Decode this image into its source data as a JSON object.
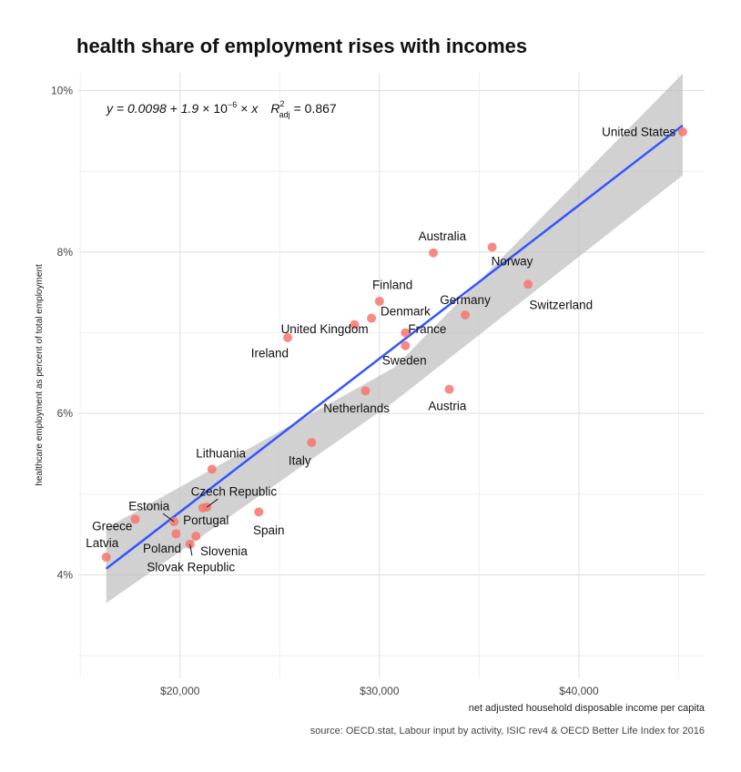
{
  "chart_data": {
    "type": "scatter",
    "title": "health share of employment rises with incomes",
    "xlabel": "net adjusted household disposable income per capita",
    "ylabel": "healthcare employment as percent of total employment",
    "caption": "source: OECD.stat, Labour input by activity, ISIC rev4 & OECD Better Life Index for 2016",
    "xlim": [
      14900,
      46300
    ],
    "ylim": [
      0.0272,
      0.1022
    ],
    "x_ticks": [
      20000,
      30000,
      40000
    ],
    "x_tick_labels": [
      "$20,000",
      "$30,000",
      "$40,000"
    ],
    "y_ticks": [
      0.04,
      0.06,
      0.08,
      0.1
    ],
    "y_tick_labels": [
      "4%",
      "6%",
      "8%",
      "10%"
    ],
    "grid": true,
    "equation": {
      "lhs": "y = 0.0098 + 1.9",
      "times1": "×",
      "base": "10",
      "exp": "−6",
      "times2": "×",
      "x": "x",
      "r": "R",
      "r_sup": "2",
      "r_sub": "adj",
      "r_val": "= 0.867"
    },
    "fit": {
      "intercept": 0.0098,
      "slope": 1.9e-06,
      "x_range": [
        16300,
        45200
      ],
      "band_start": [
        0.0365,
        0.0458
      ],
      "band_mid": [
        0.0615,
        0.0657
      ],
      "band_end": [
        0.0895,
        0.1021
      ]
    },
    "colors": {
      "point": "#f8766d",
      "line": "#3355ff",
      "band": "#bfbfbf"
    },
    "points": [
      {
        "country": "United States",
        "x": 45200,
        "y": 0.0949
      },
      {
        "country": "Australia",
        "x": 32700,
        "y": 0.0799
      },
      {
        "country": "Norway",
        "x": 35650,
        "y": 0.0806
      },
      {
        "country": "Switzerland",
        "x": 37450,
        "y": 0.076
      },
      {
        "country": "Finland",
        "x": 30000,
        "y": 0.0739
      },
      {
        "country": "Denmark",
        "x": 29600,
        "y": 0.0718
      },
      {
        "country": "Germany",
        "x": 34300,
        "y": 0.0722
      },
      {
        "country": "United Kingdom",
        "x": 28750,
        "y": 0.071
      },
      {
        "country": "France",
        "x": 31300,
        "y": 0.07
      },
      {
        "country": "Ireland",
        "x": 25400,
        "y": 0.0694
      },
      {
        "country": "Sweden",
        "x": 31300,
        "y": 0.0684
      },
      {
        "country": "Austria",
        "x": 33500,
        "y": 0.063
      },
      {
        "country": "Netherlands",
        "x": 29300,
        "y": 0.0628
      },
      {
        "country": "Italy",
        "x": 26600,
        "y": 0.0564
      },
      {
        "country": "Lithuania",
        "x": 21600,
        "y": 0.0531
      },
      {
        "country": "Czech Republic",
        "x": 21350,
        "y": 0.0484
      },
      {
        "country": "Estonia",
        "x": 19700,
        "y": 0.0466
      },
      {
        "country": "Spain",
        "x": 23950,
        "y": 0.0478
      },
      {
        "country": "Greece",
        "x": 17750,
        "y": 0.0469
      },
      {
        "country": "Portugal",
        "x": 19800,
        "y": 0.0451
      },
      {
        "country": "Slovenia",
        "x": 20800,
        "y": 0.0448
      },
      {
        "country": "Poland",
        "x": 21150,
        "y": 0.0483
      },
      {
        "country": "Slovak Republic",
        "x": 20500,
        "y": 0.0438
      },
      {
        "country": "Latvia",
        "x": 16300,
        "y": 0.0422
      }
    ],
    "labels": [
      {
        "country": "United States",
        "x": 43000,
        "y": 0.0949
      },
      {
        "country": "Australia",
        "x": 33150,
        "y": 0.082
      },
      {
        "country": "Norway",
        "x": 36650,
        "y": 0.0789
      },
      {
        "country": "Switzerland",
        "x": 39100,
        "y": 0.0735
      },
      {
        "country": "Finland",
        "x": 30650,
        "y": 0.076
      },
      {
        "country": "Denmark",
        "x": 31300,
        "y": 0.0727
      },
      {
        "country": "Germany",
        "x": 34300,
        "y": 0.0741
      },
      {
        "country": "United Kingdom",
        "x": 27250,
        "y": 0.0705
      },
      {
        "country": "France",
        "x": 32400,
        "y": 0.0705
      },
      {
        "country": "Ireland",
        "x": 24500,
        "y": 0.0675
      },
      {
        "country": "Sweden",
        "x": 31250,
        "y": 0.0666
      },
      {
        "country": "Austria",
        "x": 33400,
        "y": 0.061
      },
      {
        "country": "Netherlands",
        "x": 28850,
        "y": 0.0607
      },
      {
        "country": "Italy",
        "x": 26000,
        "y": 0.0542
      },
      {
        "country": "Lithuania",
        "x": 22050,
        "y": 0.0551
      },
      {
        "country": "Czech Republic",
        "x": 22700,
        "y": 0.0504
      },
      {
        "country": "Estonia",
        "x": 18450,
        "y": 0.0486
      },
      {
        "country": "Spain",
        "x": 24450,
        "y": 0.0456
      },
      {
        "country": "Greece",
        "x": 16600,
        "y": 0.0461
      },
      {
        "country": "Portugal",
        "x": 21300,
        "y": 0.0468
      },
      {
        "country": "Slovenia",
        "x": 22200,
        "y": 0.043
      },
      {
        "country": "Poland",
        "x": 19100,
        "y": 0.0433
      },
      {
        "country": "Slovak Republic",
        "x": 20550,
        "y": 0.041
      },
      {
        "country": "Latvia",
        "x": 16100,
        "y": 0.044
      }
    ],
    "leaders": [
      {
        "country": "Czech Republic",
        "x1": 21350,
        "y1": 0.0484,
        "x2": 21900,
        "y2": 0.0494
      },
      {
        "country": "Estonia",
        "x1": 19700,
        "y1": 0.0466,
        "x2": 19150,
        "y2": 0.0476
      },
      {
        "country": "Slovak Republic",
        "x1": 20500,
        "y1": 0.0438,
        "x2": 20600,
        "y2": 0.0424
      }
    ]
  }
}
